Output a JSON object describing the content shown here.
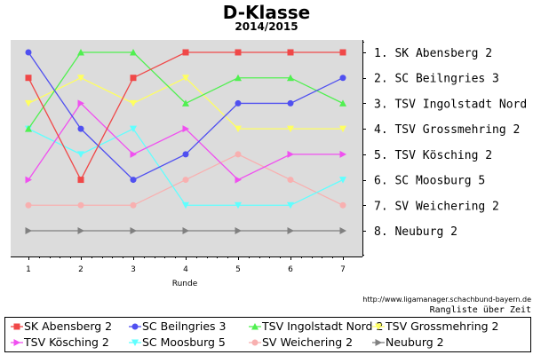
{
  "title": "D-Klasse",
  "subtitle": "2014/2015",
  "source": "http://www.ligamanager.schachbund-bayern.de",
  "note": "Rangliste über Zeit",
  "chart_data": {
    "type": "line",
    "xlabel": "Runde",
    "ylabel": "",
    "x": [
      1,
      2,
      3,
      4,
      5,
      6,
      7
    ],
    "ylim": [
      1,
      8
    ],
    "y_inverted": true,
    "grid": false,
    "legend_position": "bottom",
    "series": [
      {
        "name": "SK Abensberg 2",
        "color": "#f04848",
        "marker": "square",
        "values": [
          2,
          6,
          2,
          1,
          1,
          1,
          1
        ]
      },
      {
        "name": "SC Beilngries 3",
        "color": "#5050f0",
        "marker": "circle",
        "values": [
          1,
          4,
          6,
          5,
          3,
          3,
          2
        ]
      },
      {
        "name": "TSV Ingolstadt Nord 2",
        "color": "#50f050",
        "marker": "triangle-up",
        "values": [
          4,
          1,
          1,
          3,
          2,
          2,
          3
        ]
      },
      {
        "name": "TSV Grossmehring 2",
        "color": "#ffff60",
        "marker": "triangle-down",
        "values": [
          3,
          2,
          3,
          2,
          4,
          4,
          4
        ]
      },
      {
        "name": "TSV Kösching 2",
        "color": "#f050f0",
        "marker": "triangle-right",
        "values": [
          6,
          3,
          5,
          4,
          6,
          5,
          5
        ]
      },
      {
        "name": "SC Moosburg 5",
        "color": "#60ffff",
        "marker": "triangle-down",
        "values": [
          4,
          5,
          4,
          7,
          7,
          7,
          6
        ]
      },
      {
        "name": "SV Weichering 2",
        "color": "#f8b0b0",
        "marker": "circle",
        "values": [
          7,
          7,
          7,
          6,
          5,
          6,
          7
        ]
      },
      {
        "name": "Neuburg 2",
        "color": "#808080",
        "marker": "triangle-right",
        "values": [
          8,
          8,
          8,
          8,
          8,
          8,
          8
        ]
      }
    ],
    "right_labels": [
      "1. SK Abensberg 2",
      "2. SC Beilngries 3",
      "3. TSV Ingolstadt Nord 2",
      "4. TSV Grossmehring 2",
      "5. TSV Kösching 2",
      "6. SC Moosburg 5",
      "7. SV Weichering 2",
      "8. Neuburg 2"
    ]
  }
}
